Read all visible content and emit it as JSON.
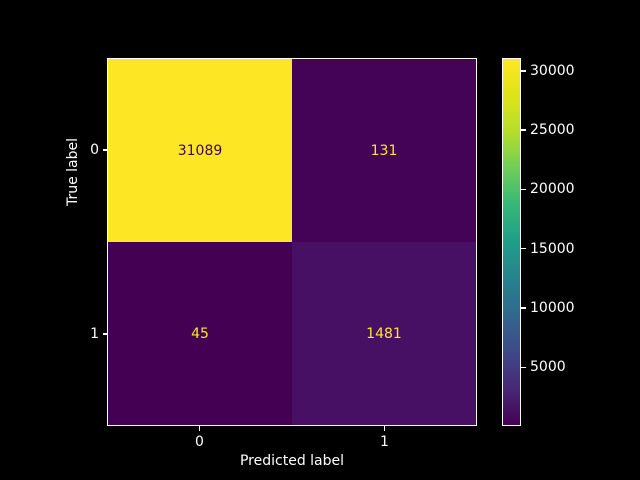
{
  "figure": {
    "background_color": "#000000",
    "foreground_color": "#ffffff"
  },
  "chart_data": {
    "type": "heatmap",
    "subtype": "confusion-matrix",
    "title": "",
    "xlabel": "Predicted label",
    "ylabel": "True label",
    "x_tick_labels": [
      "0",
      "1"
    ],
    "y_tick_labels": [
      "0",
      "1"
    ],
    "matrix": [
      [
        31089,
        131
      ],
      [
        45,
        1481
      ]
    ],
    "cell_labels": [
      [
        "31089",
        "131"
      ],
      [
        "45",
        "1481"
      ]
    ],
    "cell_colors": [
      [
        "#fde725",
        "#440357"
      ],
      [
        "#440154",
        "#471064"
      ]
    ],
    "cell_text_colors": [
      [
        "#440154",
        "#fde725"
      ],
      [
        "#fde725",
        "#fde725"
      ]
    ],
    "colormap": "viridis",
    "vmin": 45,
    "vmax": 31089,
    "grid": false,
    "colorbar": {
      "tick_values": [
        5000,
        10000,
        15000,
        20000,
        25000,
        30000
      ],
      "tick_labels": [
        "5000",
        "10000",
        "15000",
        "20000",
        "25000",
        "30000"
      ],
      "gradient_stops": [
        "#440154",
        "#482878",
        "#3e4989",
        "#31688e",
        "#26828e",
        "#1f9e89",
        "#35b779",
        "#6ece58",
        "#b5de2b",
        "#dfe318",
        "#fde725"
      ]
    }
  }
}
